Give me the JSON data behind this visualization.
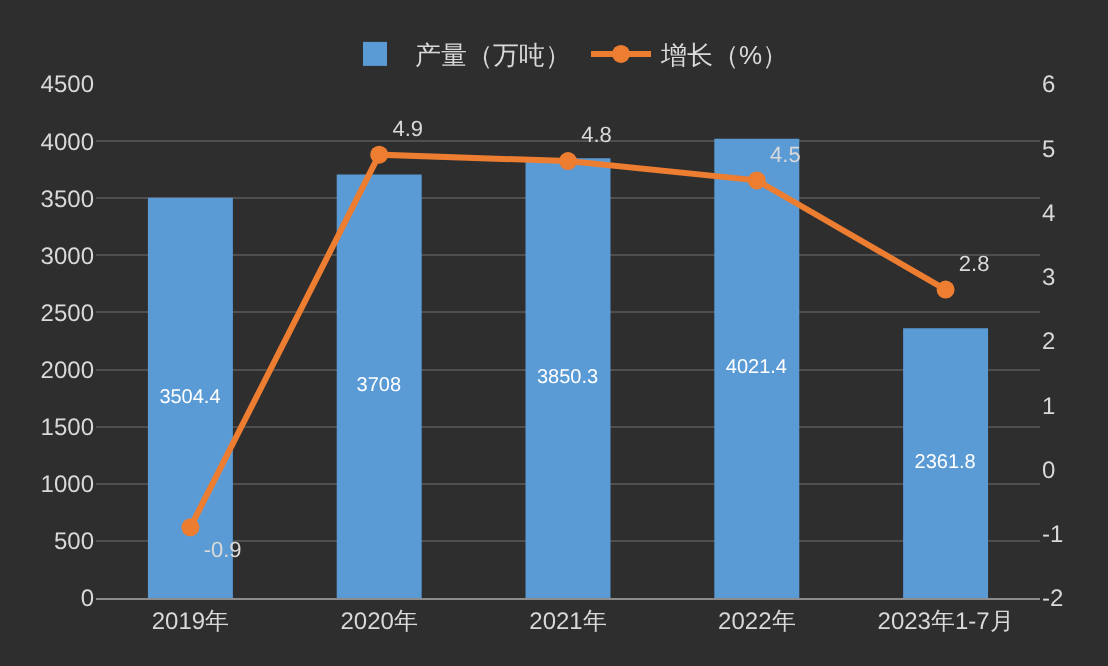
{
  "chart_data": {
    "type": "bar",
    "categories": [
      "2019年",
      "2020年",
      "2021年",
      "2022年",
      "2023年1-7月"
    ],
    "series": [
      {
        "name": "产量（万吨）",
        "type": "bar",
        "color": "#5b9bd5",
        "values": [
          3504.4,
          3708,
          3850.3,
          4021.4,
          2361.8
        ]
      },
      {
        "name": "增长（%）",
        "type": "line",
        "axis": "y2",
        "color": "#ed7d31",
        "marker": "circle",
        "values": [
          -0.9,
          4.9,
          4.8,
          4.5,
          2.8
        ]
      }
    ],
    "ylim": [
      0,
      4500
    ],
    "yticks": [
      0,
      500,
      1000,
      1500,
      2000,
      2500,
      3000,
      3500,
      4000,
      4500
    ],
    "y2lim": [
      -2,
      6
    ],
    "y2ticks": [
      -2,
      -1,
      0,
      1,
      2,
      3,
      4,
      5,
      6
    ],
    "grid": "y",
    "legend": "top",
    "data_labels": true
  }
}
